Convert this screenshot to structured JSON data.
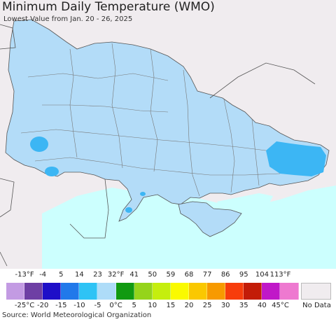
{
  "title": "Minimum Daily Temperature (WMO)",
  "subtitle": "Lowest Value from Jan. 20 - 26, 2025",
  "source": "Source: World Meteorological Organization",
  "colors": {
    "sea": "#ccfffe",
    "land_main": "#b3dcf8",
    "land_outside": "#f0ecef",
    "cold_patch": "#3cb6f4",
    "borders": "#666666"
  },
  "legend": {
    "fahrenheit_ticks": [
      "-13°F",
      "-4",
      "5",
      "14",
      "23",
      "32°F",
      "41",
      "50",
      "59",
      "68",
      "77",
      "86",
      "95",
      "104",
      "113°F"
    ],
    "celsius_ticks": [
      "-25°C",
      "-20",
      "-15",
      "-10",
      "-5",
      "0°C",
      "5",
      "10",
      "15",
      "20",
      "25",
      "30",
      "35",
      "40",
      "45°C"
    ],
    "colors": [
      "#c39be3",
      "#6e3fa4",
      "#1e0fc8",
      "#2179ea",
      "#2ec3f5",
      "#aedcf8",
      "#119a11",
      "#95d41b",
      "#c5ee0e",
      "#fafa00",
      "#fac800",
      "#f79a00",
      "#f73d0c",
      "#c31c08",
      "#c018c8",
      "#ee79d0"
    ],
    "no_data_label": "No Data"
  }
}
